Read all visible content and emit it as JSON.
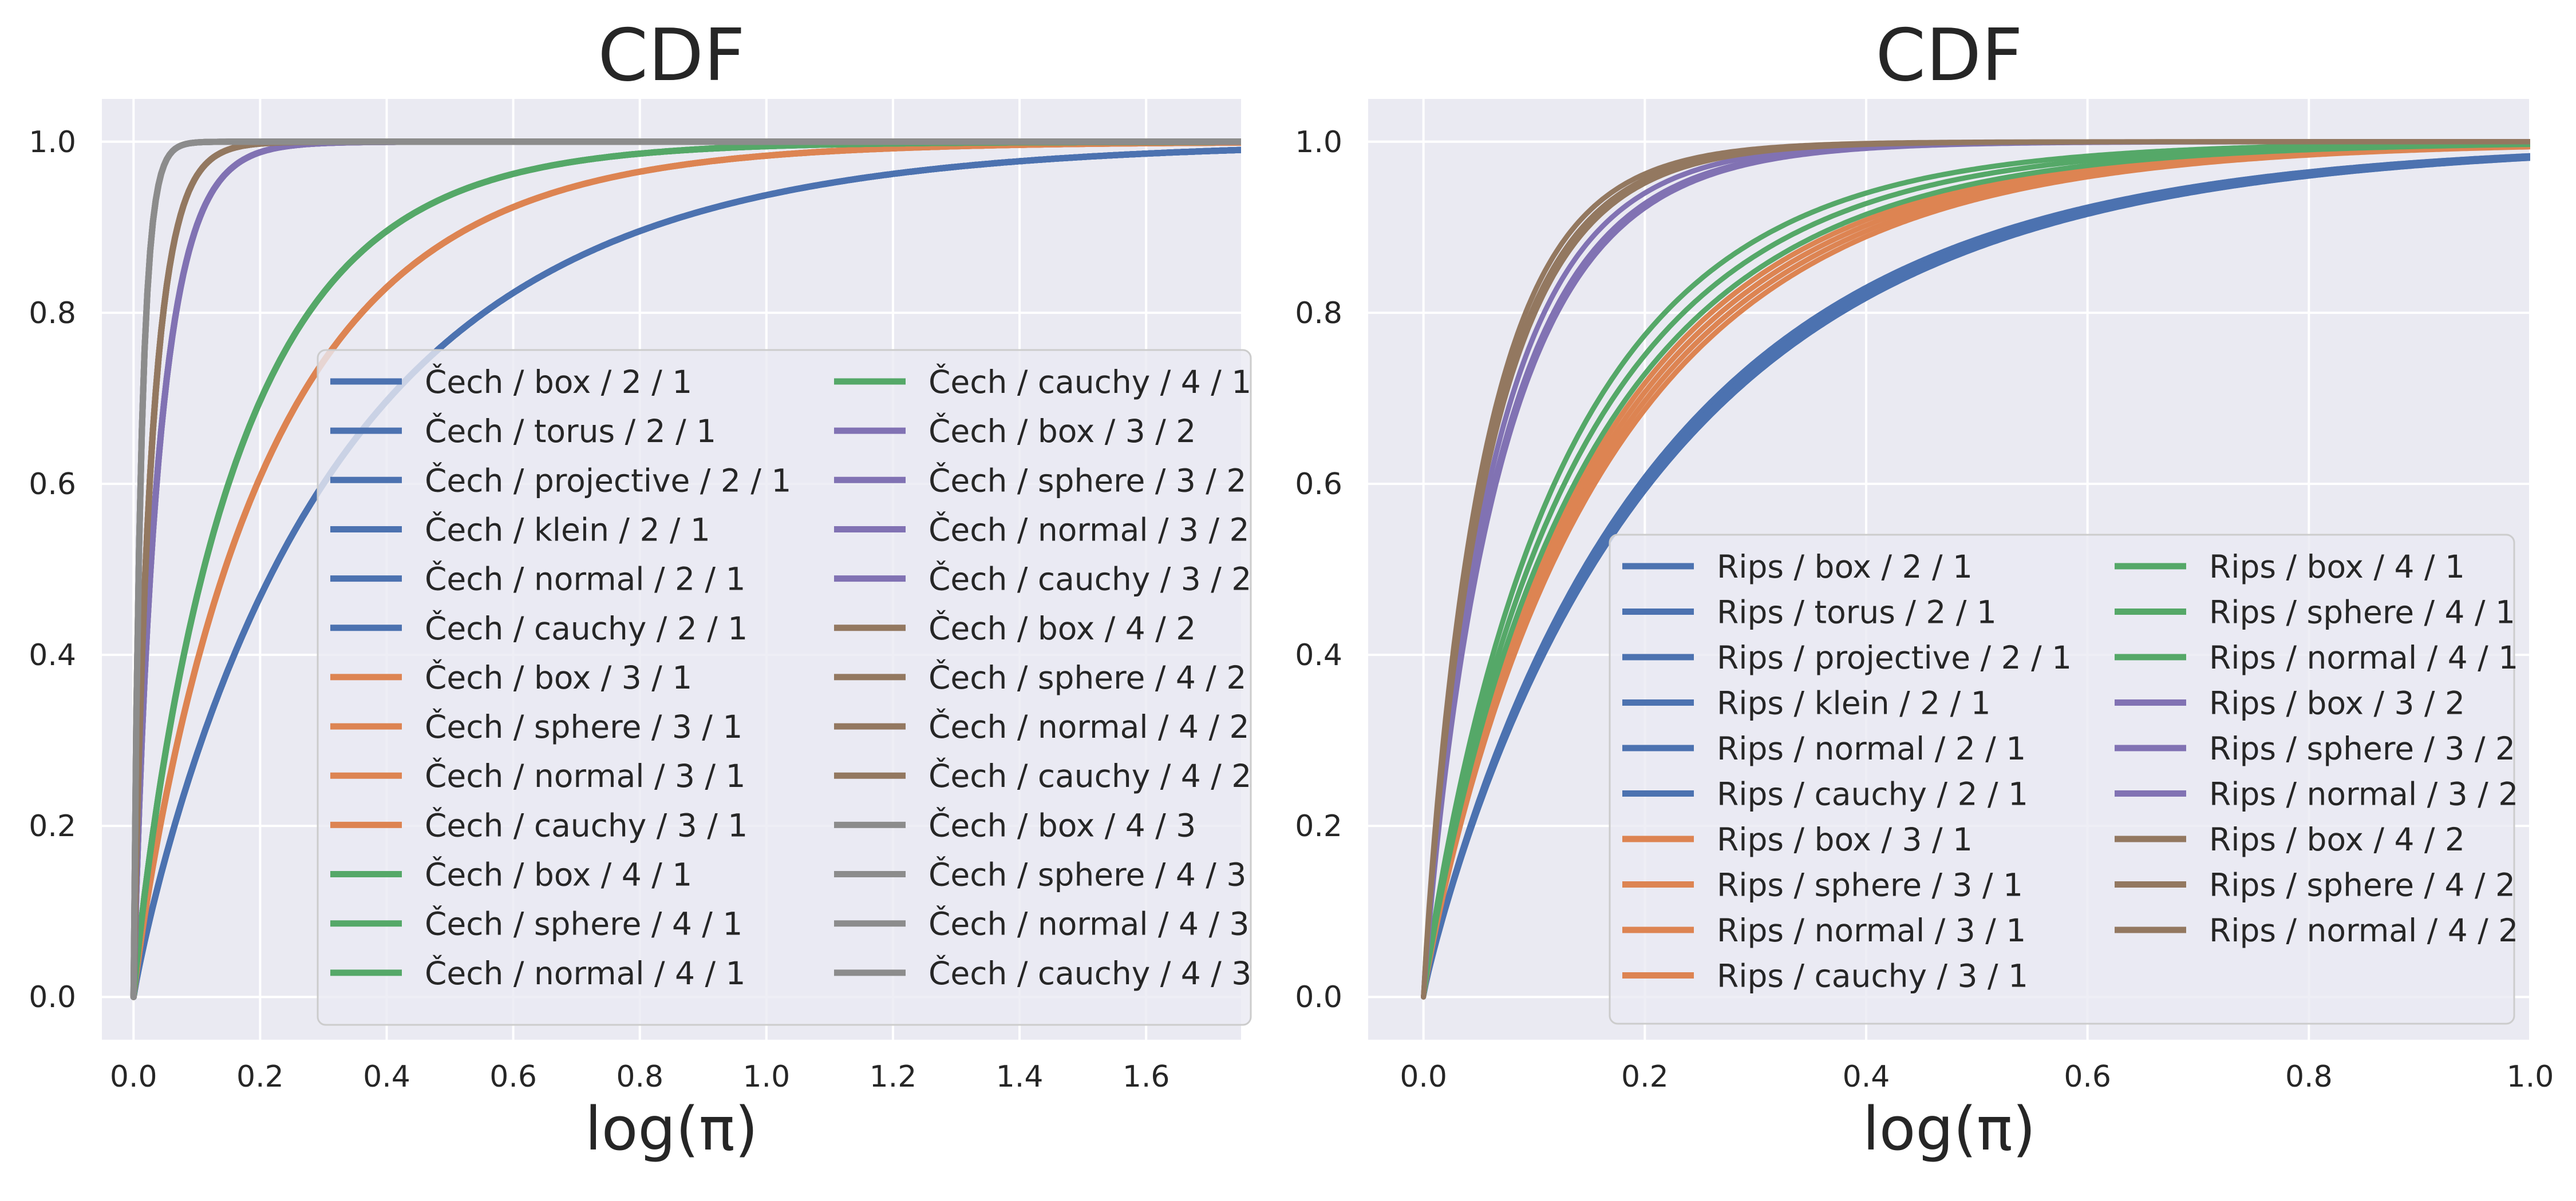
{
  "chart_data": [
    {
      "type": "line",
      "title": "CDF",
      "xlabel": "log(π)",
      "ylabel": "",
      "xlim": [
        -0.05,
        1.75
      ],
      "ylim": [
        -0.05,
        1.05
      ],
      "xticks": [
        "0.0",
        "0.2",
        "0.4",
        "0.6",
        "0.8",
        "1.0",
        "1.2",
        "1.4",
        "1.6"
      ],
      "yticks": [
        "0.0",
        "0.2",
        "0.4",
        "0.6",
        "0.8",
        "1.0"
      ],
      "grid": true,
      "legend": {
        "placement": "lower right",
        "columns": 2
      },
      "series": [
        {
          "name": "Čech / box / 2 / 1",
          "color": "#4c72b0",
          "scale": 0.33
        },
        {
          "name": "Čech / torus / 2 / 1",
          "color": "#4c72b0",
          "scale": 0.33
        },
        {
          "name": "Čech / projective / 2 / 1",
          "color": "#4c72b0",
          "scale": 0.33
        },
        {
          "name": "Čech / klein / 2 / 1",
          "color": "#4c72b0",
          "scale": 0.33
        },
        {
          "name": "Čech / normal / 2 / 1",
          "color": "#4c72b0",
          "scale": 0.33
        },
        {
          "name": "Čech / cauchy / 2 / 1",
          "color": "#4c72b0",
          "scale": 0.33
        },
        {
          "name": "Čech / box / 3 / 1",
          "color": "#dd8452",
          "scale": 0.215
        },
        {
          "name": "Čech / sphere / 3 / 1",
          "color": "#dd8452",
          "scale": 0.215
        },
        {
          "name": "Čech / normal / 3 / 1",
          "color": "#dd8452",
          "scale": 0.215
        },
        {
          "name": "Čech / cauchy / 3 / 1",
          "color": "#dd8452",
          "scale": 0.215
        },
        {
          "name": "Čech / box / 4 / 1",
          "color": "#55a868",
          "scale": 0.165
        },
        {
          "name": "Čech / sphere / 4 / 1",
          "color": "#55a868",
          "scale": 0.165
        },
        {
          "name": "Čech / normal / 4 / 1",
          "color": "#55a868",
          "scale": 0.165
        },
        {
          "name": "Čech / cauchy / 4 / 1",
          "color": "#55a868",
          "scale": 0.165
        },
        {
          "name": "Čech / box / 3 / 2",
          "color": "#8172b3",
          "scale": 0.04
        },
        {
          "name": "Čech / sphere / 3 / 2",
          "color": "#8172b3",
          "scale": 0.04
        },
        {
          "name": "Čech / normal / 3 / 2",
          "color": "#8172b3",
          "scale": 0.04
        },
        {
          "name": "Čech / cauchy / 3 / 2",
          "color": "#8172b3",
          "scale": 0.04
        },
        {
          "name": "Čech / box / 4 / 2",
          "color": "#937860",
          "scale": 0.028
        },
        {
          "name": "Čech / sphere / 4 / 2",
          "color": "#937860",
          "scale": 0.028
        },
        {
          "name": "Čech / normal / 4 / 2",
          "color": "#937860",
          "scale": 0.028
        },
        {
          "name": "Čech / cauchy / 4 / 2",
          "color": "#937860",
          "scale": 0.028
        },
        {
          "name": "Čech / box / 4 / 3",
          "color": "#8c8c8c",
          "scale": 0.012
        },
        {
          "name": "Čech / sphere / 4 / 3",
          "color": "#8c8c8c",
          "scale": 0.012
        },
        {
          "name": "Čech / normal / 4 / 3",
          "color": "#8c8c8c",
          "scale": 0.012
        },
        {
          "name": "Čech / cauchy / 4 / 3",
          "color": "#8c8c8c",
          "scale": 0.012
        }
      ]
    },
    {
      "type": "line",
      "title": "CDF",
      "xlabel": "log(π)",
      "ylabel": "",
      "xlim": [
        -0.05,
        1.0
      ],
      "ylim": [
        -0.05,
        1.05
      ],
      "xticks": [
        "0.0",
        "0.2",
        "0.4",
        "0.6",
        "0.8",
        "1.0"
      ],
      "yticks": [
        "0.0",
        "0.2",
        "0.4",
        "0.6",
        "0.8",
        "1.0"
      ],
      "grid": true,
      "legend": {
        "placement": "lower right",
        "columns": 2
      },
      "series": [
        {
          "name": "Rips / box / 2 / 1",
          "color": "#4c72b0",
          "scale": 0.215
        },
        {
          "name": "Rips / torus / 2 / 1",
          "color": "#4c72b0",
          "scale": 0.225
        },
        {
          "name": "Rips / projective / 2 / 1",
          "color": "#4c72b0",
          "scale": 0.215
        },
        {
          "name": "Rips / klein / 2 / 1",
          "color": "#4c72b0",
          "scale": 0.225
        },
        {
          "name": "Rips / normal / 2 / 1",
          "color": "#4c72b0",
          "scale": 0.22
        },
        {
          "name": "Rips / cauchy / 2 / 1",
          "color": "#4c72b0",
          "scale": 0.22
        },
        {
          "name": "Rips / box / 3 / 1",
          "color": "#dd8452",
          "scale": 0.155
        },
        {
          "name": "Rips / sphere / 3 / 1",
          "color": "#dd8452",
          "scale": 0.16
        },
        {
          "name": "Rips / normal / 3 / 1",
          "color": "#dd8452",
          "scale": 0.165
        },
        {
          "name": "Rips / cauchy / 3 / 1",
          "color": "#dd8452",
          "scale": 0.17
        },
        {
          "name": "Rips / box / 4 / 1",
          "color": "#55a868",
          "scale": 0.13
        },
        {
          "name": "Rips / sphere / 4 / 1",
          "color": "#55a868",
          "scale": 0.14
        },
        {
          "name": "Rips / normal / 4 / 1",
          "color": "#55a868",
          "scale": 0.15
        },
        {
          "name": "Rips / box / 3 / 2",
          "color": "#8172b3",
          "scale": 0.065
        },
        {
          "name": "Rips / sphere / 3 / 2",
          "color": "#8172b3",
          "scale": 0.072
        },
        {
          "name": "Rips / normal / 3 / 2",
          "color": "#8172b3",
          "scale": 0.07
        },
        {
          "name": "Rips / box / 4 / 2",
          "color": "#937860",
          "scale": 0.055
        },
        {
          "name": "Rips / sphere / 4 / 2",
          "color": "#937860",
          "scale": 0.06
        },
        {
          "name": "Rips / normal / 4 / 2",
          "color": "#937860",
          "scale": 0.058
        }
      ]
    }
  ]
}
